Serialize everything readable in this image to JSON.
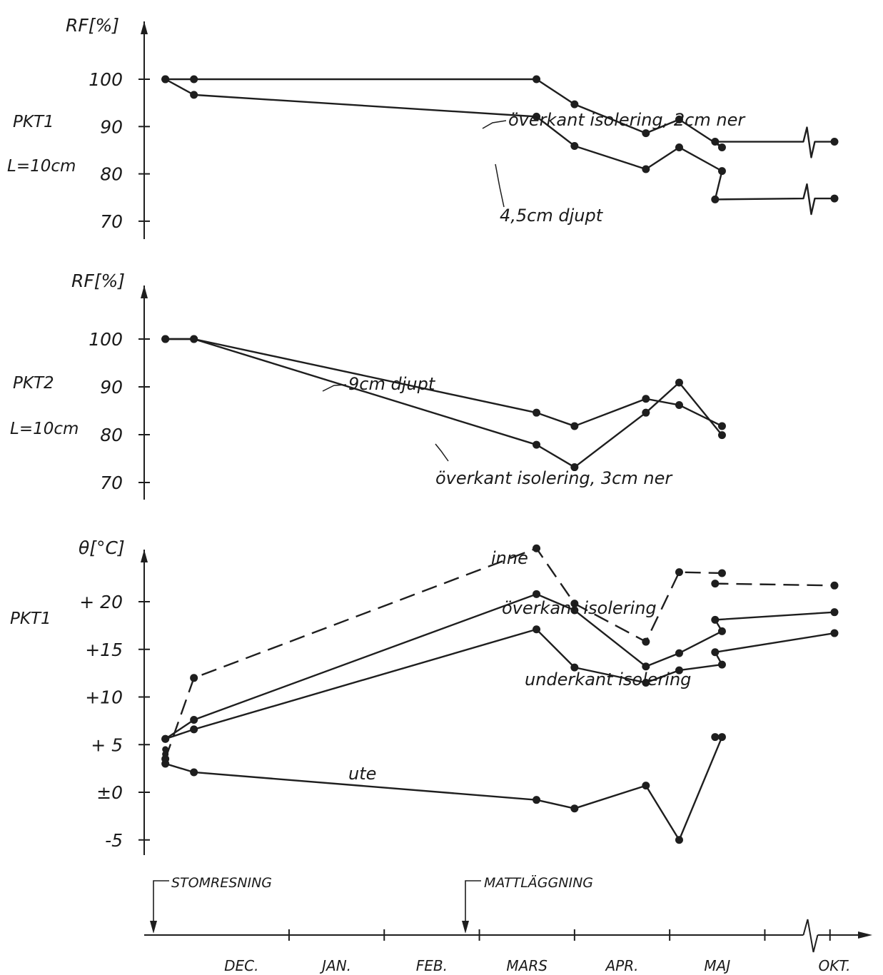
{
  "chart_data": [
    {
      "type": "line",
      "panel": "pkt1_rf",
      "y_axis_label": "RF[%]",
      "side_labels": [
        "PKT1",
        "L=10cm"
      ],
      "y_ticks": [
        "100",
        "90",
        "80",
        "70"
      ],
      "ylim": [
        65,
        105
      ],
      "axis_break_x": 15.3,
      "series": [
        {
          "label": "överkant isolering, 2cm ner",
          "style": "solid",
          "points": [
            [
              0.2,
              100
            ],
            [
              0.5,
              100
            ],
            [
              4.1,
              100
            ],
            [
              4.5,
              94.7
            ],
            [
              5.25,
              88.6
            ],
            [
              5.6,
              91.5
            ],
            [
              6.05,
              85.6
            ],
            [
              9.0,
              86.8
            ],
            [
              17.0,
              86.8
            ]
          ]
        },
        {
          "label": "4,5cm djupt",
          "style": "solid",
          "points": [
            [
              0.2,
              100
            ],
            [
              0.5,
              96.7
            ],
            [
              4.1,
              92.1
            ],
            [
              4.5,
              85.9
            ],
            [
              5.25,
              81
            ],
            [
              5.6,
              85.6
            ],
            [
              6.05,
              80.6
            ],
            [
              9.0,
              74.6
            ],
            [
              17.0,
              74.8
            ]
          ]
        }
      ]
    },
    {
      "type": "line",
      "panel": "pkt2_rf",
      "y_axis_label": "RF[%]",
      "side_labels": [
        "PKT2",
        "L=10cm"
      ],
      "y_ticks": [
        "100",
        "90",
        "80",
        "70"
      ],
      "ylim": [
        65,
        105
      ],
      "series": [
        {
          "label": "9cm djupt",
          "style": "solid",
          "points": [
            [
              0.2,
              100
            ],
            [
              0.5,
              100
            ],
            [
              4.1,
              84.6
            ],
            [
              4.5,
              81.8
            ],
            [
              5.25,
              87.5
            ],
            [
              5.6,
              86.2
            ],
            [
              6.05,
              81.8
            ]
          ]
        },
        {
          "label": "överkant isolering, 3cm ner",
          "style": "solid",
          "points": [
            [
              0.2,
              100
            ],
            [
              0.5,
              100
            ],
            [
              4.1,
              77.9
            ],
            [
              4.5,
              73.2
            ],
            [
              5.25,
              84.6
            ],
            [
              5.6,
              90.9
            ],
            [
              6.05,
              79.9
            ]
          ]
        }
      ]
    },
    {
      "type": "line",
      "panel": "pkt1_temp",
      "y_axis_label": "θ[°C]",
      "side_labels": [
        "PKT1"
      ],
      "y_ticks": [
        "+ 20",
        "+15",
        "+10",
        "+ 5",
        "±0",
        "-5"
      ],
      "ylim": [
        -7,
        27
      ],
      "series": [
        {
          "label": "inne",
          "style": "dashed",
          "points": [
            [
              0.2,
              3.5
            ],
            [
              0.5,
              12
            ],
            [
              4.1,
              25.6
            ],
            [
              4.5,
              19.8
            ],
            [
              5.25,
              15.8
            ],
            [
              5.6,
              23.1
            ],
            [
              6.05,
              23
            ],
            [
              9.0,
              21.9
            ],
            [
              17.0,
              21.7
            ]
          ]
        },
        {
          "label": "överkant isolering",
          "style": "solid",
          "points": [
            [
              0.2,
              5.6
            ],
            [
              0.5,
              7.6
            ],
            [
              4.1,
              20.8
            ],
            [
              4.5,
              19.1
            ],
            [
              5.25,
              13.2
            ],
            [
              5.6,
              14.6
            ],
            [
              6.05,
              16.9
            ],
            [
              9.0,
              18.1
            ],
            [
              17.0,
              18.9
            ]
          ]
        },
        {
          "label": "underkant isolering",
          "style": "solid",
          "points": [
            [
              0.2,
              5.6
            ],
            [
              0.5,
              6.6
            ],
            [
              4.1,
              17.1
            ],
            [
              4.5,
              13.1
            ],
            [
              5.25,
              11.5
            ],
            [
              5.6,
              12.8
            ],
            [
              6.05,
              13.4
            ],
            [
              9.0,
              14.7
            ],
            [
              17.0,
              16.7
            ]
          ]
        },
        {
          "label": "ute",
          "style": "solid",
          "points": [
            [
              0.2,
              3
            ],
            [
              0.5,
              2.1
            ],
            [
              4.1,
              -0.8
            ],
            [
              4.5,
              -1.7
            ],
            [
              5.25,
              0.7
            ],
            [
              5.6,
              -5
            ],
            [
              6.05,
              5.8
            ],
            [
              9.0,
              5.8
            ]
          ]
        }
      ],
      "extra_markers": [
        [
          0.2,
          4.5
        ],
        [
          0.2,
          4.0
        ],
        [
          0.2,
          3.5
        ]
      ]
    }
  ],
  "x_axis": {
    "months": [
      "DEC.",
      "JAN.",
      "FEB.",
      "MARS",
      "APR.",
      "MAJ",
      "OKT."
    ],
    "month_positions": [
      1,
      2,
      3,
      4,
      5,
      6,
      17
    ],
    "tick_positions": [
      1.5,
      2.5,
      3.5,
      4.5,
      5.5,
      6.5,
      16.7
    ],
    "break_position": 15.3,
    "range": [
      0,
      17.8
    ]
  },
  "events": [
    {
      "label": "STOMRESNING",
      "x": 0.05
    },
    {
      "label": "MATTLÄGGNING",
      "x": 5.15
    }
  ]
}
